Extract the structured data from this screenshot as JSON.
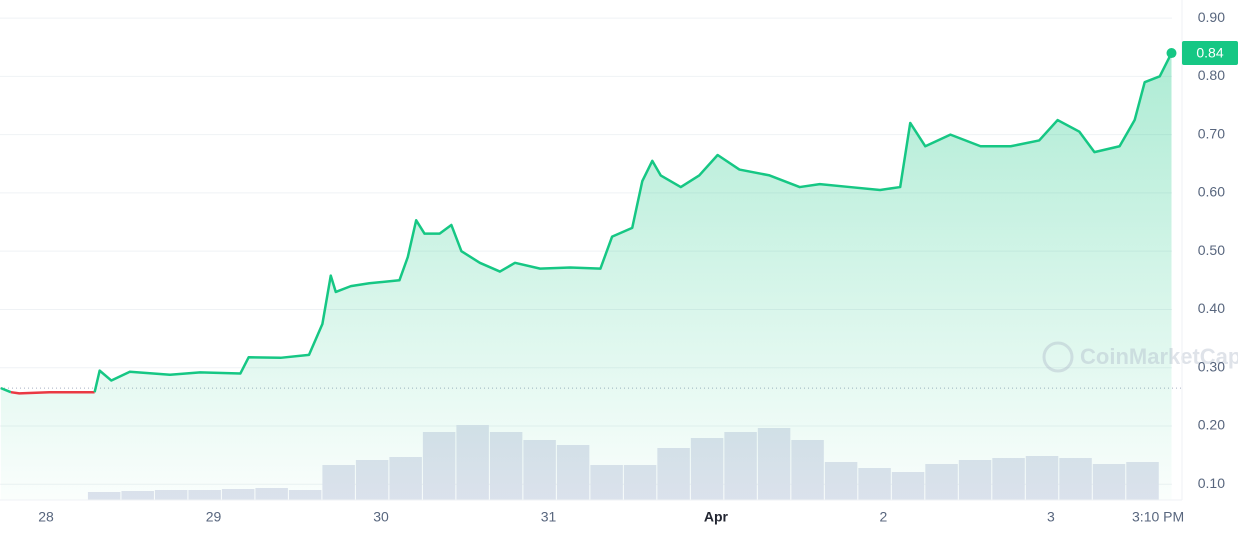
{
  "chart_data": {
    "type": "line",
    "watermark": "CoinMarketCap",
    "baseline": 0.265,
    "xlim": [
      -0.275,
      6.723
    ],
    "ylim": [
      0.073,
      0.931
    ],
    "y2lim": [
      0,
      1
    ],
    "grid": true,
    "xticks": [
      {
        "value": 0,
        "label": "28"
      },
      {
        "value": 1,
        "label": "29"
      },
      {
        "value": 2,
        "label": "30"
      },
      {
        "value": 3,
        "label": "31"
      },
      {
        "value": 4,
        "label": "Apr"
      },
      {
        "value": 5,
        "label": "2"
      },
      {
        "value": 6,
        "label": "3"
      },
      {
        "value": 6.64,
        "label": "3:10 PM"
      }
    ],
    "yticks": [
      {
        "value": 0.1,
        "label": "0.10"
      },
      {
        "value": 0.2,
        "label": "0.20"
      },
      {
        "value": 0.3,
        "label": "0.30"
      },
      {
        "value": 0.4,
        "label": "0.40"
      },
      {
        "value": 0.5,
        "label": "0.50"
      },
      {
        "value": 0.6,
        "label": "0.60"
      },
      {
        "value": 0.7,
        "label": "0.70"
      },
      {
        "value": 0.8,
        "label": "0.80"
      },
      {
        "value": 0.9,
        "label": "0.90"
      }
    ],
    "series": [
      {
        "name": "Price",
        "color": "#16c784",
        "down_color": "#ea3943",
        "x": [
          -0.27,
          -0.21,
          -0.16,
          0.02,
          0.29,
          0.32,
          0.39,
          0.5,
          0.74,
          0.92,
          1.16,
          1.21,
          1.4,
          1.57,
          1.65,
          1.7,
          1.73,
          1.82,
          1.93,
          2.11,
          2.16,
          2.21,
          2.26,
          2.35,
          2.42,
          2.48,
          2.59,
          2.71,
          2.8,
          2.95,
          3.13,
          3.31,
          3.38,
          3.5,
          3.56,
          3.62,
          3.67,
          3.79,
          3.9,
          4.01,
          4.14,
          4.32,
          4.5,
          4.62,
          4.8,
          4.98,
          5.1,
          5.16,
          5.25,
          5.4,
          5.58,
          5.76,
          5.93,
          6.04,
          6.17,
          6.26,
          6.41,
          6.5,
          6.56,
          6.65,
          6.72
        ],
        "values": [
          0.265,
          0.258,
          0.256,
          0.258,
          0.258,
          0.295,
          0.278,
          0.293,
          0.288,
          0.292,
          0.29,
          0.318,
          0.317,
          0.322,
          0.375,
          0.458,
          0.43,
          0.44,
          0.445,
          0.45,
          0.49,
          0.553,
          0.53,
          0.53,
          0.545,
          0.5,
          0.48,
          0.465,
          0.48,
          0.47,
          0.472,
          0.47,
          0.525,
          0.54,
          0.62,
          0.655,
          0.63,
          0.61,
          0.63,
          0.665,
          0.64,
          0.63,
          0.61,
          0.615,
          0.61,
          0.605,
          0.61,
          0.72,
          0.68,
          0.7,
          0.68,
          0.68,
          0.69,
          0.725,
          0.705,
          0.67,
          0.68,
          0.725,
          0.79,
          0.8,
          0.84
        ]
      },
      {
        "name": "Volume",
        "color": "#dfe2ee",
        "axis": "y2",
        "x": [
          0.35,
          0.55,
          0.75,
          0.95,
          1.15,
          1.35,
          1.55,
          1.75,
          1.95,
          2.15,
          2.35,
          2.55,
          2.75,
          2.95,
          3.15,
          3.35,
          3.55,
          3.75,
          3.95,
          4.15,
          4.35,
          4.55,
          4.75,
          4.95,
          5.15,
          5.35,
          5.55,
          5.75,
          5.95,
          6.15,
          6.35,
          6.55
        ],
        "values": [
          0.08,
          0.09,
          0.1,
          0.1,
          0.11,
          0.12,
          0.1,
          0.35,
          0.4,
          0.43,
          0.68,
          0.75,
          0.68,
          0.6,
          0.55,
          0.35,
          0.35,
          0.52,
          0.62,
          0.68,
          0.72,
          0.6,
          0.38,
          0.32,
          0.28,
          0.36,
          0.4,
          0.42,
          0.44,
          0.42,
          0.36,
          0.38
        ]
      }
    ]
  }
}
